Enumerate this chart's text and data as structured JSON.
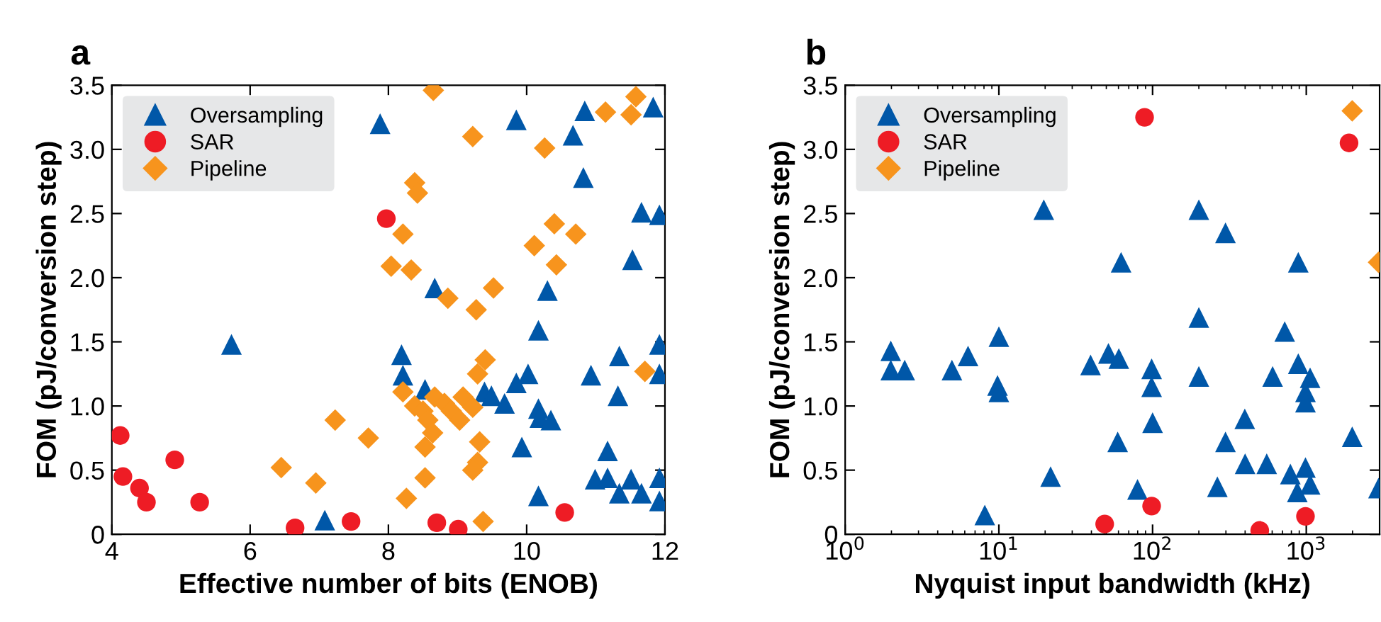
{
  "chart_data": [
    {
      "type": "scatter",
      "title": "a",
      "xlabel": "Effective number of bits (ENOB)",
      "ylabel": "FOM (pJ/conversion step)",
      "xlim": [
        4,
        12
      ],
      "xticks": [
        4,
        6,
        8,
        10,
        12
      ],
      "ylim": [
        0,
        3.5
      ],
      "yticks": [
        0,
        0.5,
        {
          "value": 1,
          "label": "1.0"
        },
        1.5,
        {
          "value": 2,
          "label": "2.0"
        },
        2.5,
        {
          "value": 3,
          "label": "3.0"
        },
        3.5
      ],
      "legend": "top left",
      "grid": false,
      "series": [
        {
          "name": "Oversampling",
          "color": "#0057a8",
          "marker": "triangle",
          "x": [
            7.88,
            5.73,
            7.08,
            9.85,
            10.84,
            10.67,
            10.82,
            11.83,
            11.66,
            11.92,
            11.53,
            8.67,
            10.3,
            10.17,
            8.19,
            8.21,
            8.53,
            9.39,
            9.49,
            9.68,
            9.85,
            10.02,
            10.17,
            10.19,
            10.35,
            10.93,
            11.34,
            11.32,
            11.92,
            11.92,
            9.93,
            11.17,
            10.99,
            11.17,
            11.51,
            11.34,
            11.66,
            11.92,
            11.92,
            10.17
          ],
          "values": [
            3.2,
            1.48,
            0.11,
            3.23,
            3.3,
            3.11,
            2.78,
            3.33,
            2.51,
            2.49,
            2.14,
            1.92,
            1.9,
            1.59,
            1.4,
            1.24,
            1.13,
            1.11,
            1.08,
            1.02,
            1.18,
            1.25,
            0.98,
            0.91,
            0.89,
            1.24,
            1.39,
            1.08,
            1.48,
            1.25,
            0.68,
            0.65,
            0.43,
            0.44,
            0.43,
            0.32,
            0.32,
            0.44,
            0.26,
            0.3
          ]
        },
        {
          "name": "SAR",
          "color": "#ee1c25",
          "marker": "circle",
          "x": [
            7.97,
            4.12,
            4.16,
            4.4,
            4.5,
            4.91,
            5.27,
            6.65,
            7.46,
            8.7,
            9.01,
            10.55
          ],
          "values": [
            2.46,
            0.77,
            0.45,
            0.36,
            0.25,
            0.58,
            0.25,
            0.05,
            0.1,
            0.09,
            0.04,
            0.17
          ]
        },
        {
          "name": "Pipeline",
          "color": "#f7941d",
          "marker": "diamond",
          "x": [
            6.45,
            6.95,
            7.23,
            7.71,
            8.65,
            9.22,
            8.38,
            8.42,
            8.21,
            8.04,
            8.33,
            8.86,
            9.27,
            9.52,
            10.26,
            11.14,
            11.51,
            11.58,
            10.4,
            10.11,
            10.71,
            10.43,
            11.71,
            9.4,
            8.21,
            8.38,
            8.5,
            8.57,
            8.67,
            8.81,
            8.91,
            9.03,
            9.08,
            9.22,
            9.29,
            8.64,
            8.53,
            9.32,
            9.29,
            9.22,
            8.53,
            8.26,
            9.37
          ],
          "values": [
            0.52,
            0.4,
            0.89,
            0.75,
            3.46,
            3.1,
            2.74,
            2.66,
            2.34,
            2.09,
            2.06,
            1.84,
            1.75,
            1.92,
            3.01,
            3.29,
            3.27,
            3.41,
            2.42,
            2.25,
            2.34,
            2.1,
            1.27,
            1.36,
            1.11,
            1.0,
            0.96,
            0.89,
            1.07,
            1.02,
            0.96,
            0.89,
            1.07,
            0.99,
            1.25,
            0.79,
            0.68,
            0.72,
            0.56,
            0.5,
            0.44,
            0.28,
            0.1
          ]
        }
      ]
    },
    {
      "type": "scatter",
      "title": "b",
      "xlabel": "Nyquist input bandwidth (kHz)",
      "ylabel": "FOM (pJ/conversion step)",
      "log": "x",
      "xlim": [
        1,
        3000
      ],
      "xticks": [
        {
          "value": 1,
          "label": "10$^{0}$"
        },
        {
          "value": 10,
          "label": "10$^{1}$"
        },
        {
          "value": 100,
          "label": "10$^{2}$"
        },
        {
          "value": 1000,
          "label": "10$^{3}$"
        }
      ],
      "ylim": [
        0,
        3.5
      ],
      "yticks": [
        0,
        0.5,
        {
          "value": 1,
          "label": "1.0"
        },
        1.5,
        {
          "value": 2,
          "label": "2.0"
        },
        2.5,
        {
          "value": 3,
          "label": "3.0"
        },
        3.5
      ],
      "legend": "top left",
      "grid": false,
      "series": [
        {
          "name": "Oversampling",
          "color": "#0057a8",
          "marker": "triangle",
          "x": [
            1.98,
            1.98,
            2.44,
            4.95,
            6.3,
            10,
            9.8,
            10,
            8.1,
            19.6,
            21.7,
            200,
            298,
            62.4,
            887,
            200,
            724,
            39.5,
            51.6,
            60.3,
            98.6,
            98.6,
            200,
            604,
            887,
            1059,
            988,
            988,
            100,
            398,
            59.3,
            298,
            1990,
            400,
            553,
            788,
            988,
            1059,
            874,
            264,
            79.8,
            2950
          ],
          "values": [
            1.43,
            1.28,
            1.28,
            1.28,
            1.39,
            1.54,
            1.16,
            1.11,
            0.15,
            2.53,
            0.45,
            2.53,
            2.35,
            2.12,
            2.12,
            1.69,
            1.58,
            1.32,
            1.41,
            1.37,
            1.29,
            1.15,
            1.23,
            1.23,
            1.33,
            1.22,
            1.11,
            1.03,
            0.87,
            0.9,
            0.72,
            0.72,
            0.76,
            0.55,
            0.55,
            0.47,
            0.52,
            0.39,
            0.33,
            0.37,
            0.35,
            0.36
          ]
        },
        {
          "name": "SAR",
          "color": "#ee1c25",
          "marker": "circle",
          "x": [
            88.7,
            1897,
            98.6,
            48.8,
            498,
            988
          ],
          "values": [
            3.25,
            3.05,
            0.22,
            0.08,
            0.03,
            0.14
          ]
        },
        {
          "name": "Pipeline",
          "color": "#f7941d",
          "marker": "diamond",
          "x": [
            1990,
            2950
          ],
          "values": [
            3.3,
            2.12
          ]
        }
      ]
    }
  ]
}
